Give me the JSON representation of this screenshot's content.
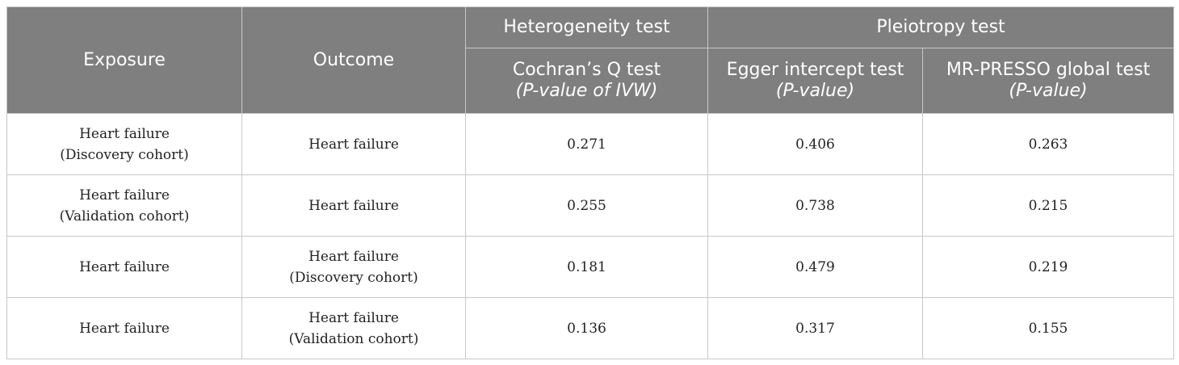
{
  "header": {
    "exposure": "Exposure",
    "outcome": "Outcome",
    "heterogeneity_group": "Heterogeneity test",
    "pleiotropy_group": "Pleiotropy test",
    "cochran": {
      "title": "Cochran’s Q test",
      "sub": "(P-value of IVW)"
    },
    "egger": {
      "title": "Egger intercept test",
      "sub": "(P-value)"
    },
    "mrpresso": {
      "title": "MR-PRESSO global test",
      "sub": "(P-value)"
    }
  },
  "rows": [
    {
      "exposure": [
        "Heart failure",
        "(Discovery cohort)"
      ],
      "outcome": [
        "Heart failure"
      ],
      "cochran": "0.271",
      "egger": "0.406",
      "mrpresso": "0.263"
    },
    {
      "exposure": [
        "Heart failure",
        "(Validation cohort)"
      ],
      "outcome": [
        "Heart failure"
      ],
      "cochran": "0.255",
      "egger": "0.738",
      "mrpresso": "0.215"
    },
    {
      "exposure": [
        "Heart failure"
      ],
      "outcome": [
        "Heart failure",
        "(Discovery cohort)"
      ],
      "cochran": "0.181",
      "egger": "0.479",
      "mrpresso": "0.219"
    },
    {
      "exposure": [
        "Heart failure"
      ],
      "outcome": [
        "Heart failure",
        "(Validation cohort)"
      ],
      "cochran": "0.136",
      "egger": "0.317",
      "mrpresso": "0.155"
    }
  ]
}
